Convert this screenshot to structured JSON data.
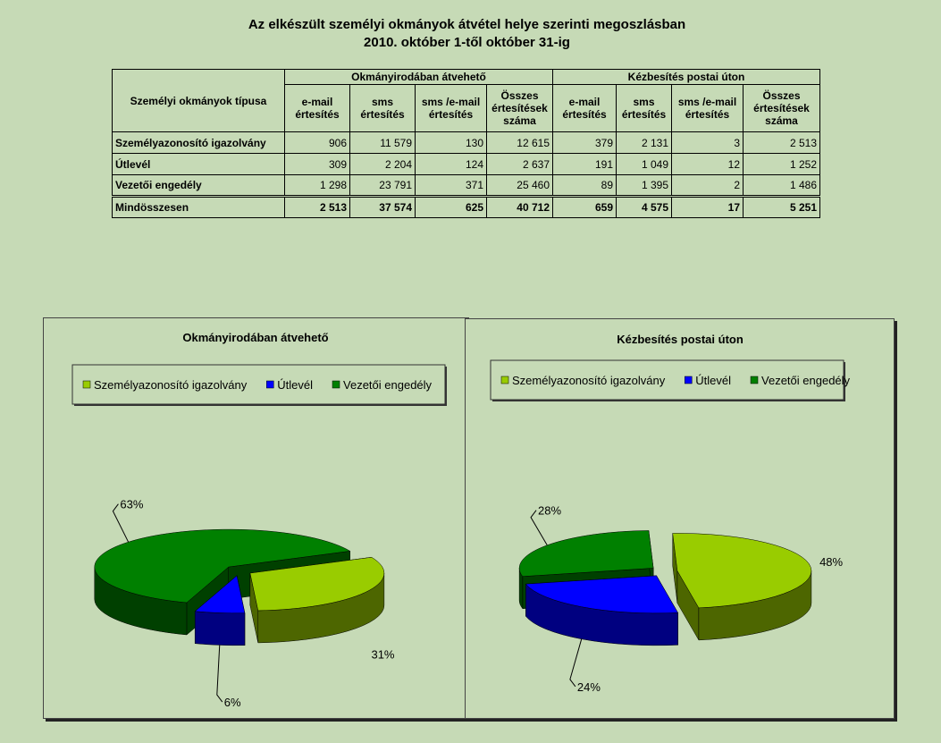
{
  "header": {
    "title": "Az elkészült személyi okmányok átvétel helye szerinti megoszlásban",
    "subtitle": "2010. október 1-től október 31-ig"
  },
  "table": {
    "corner_header": "Személyi okmányok típusa",
    "groups": [
      "Okmányirodában átvehető",
      "Kézbesítés postai úton"
    ],
    "subheaders": [
      "e-mail értesítés",
      "sms értesítés",
      "sms /e-mail értesítés",
      "Összes értesítések száma",
      "e-mail értesítés",
      "sms értesítés",
      "sms /e-mail értesítés",
      "Összes értesítések száma"
    ],
    "rows": [
      [
        "Személyazonosító igazolvány",
        "906",
        "11 579",
        "130",
        "12 615",
        "379",
        "2 131",
        "3",
        "2 513"
      ],
      [
        "Útlevél",
        "309",
        "2 204",
        "124",
        "2 637",
        "191",
        "1 049",
        "12",
        "1 252"
      ],
      [
        "Vezetői engedély",
        "1 298",
        "23 791",
        "371",
        "25 460",
        "89",
        "1 395",
        "2",
        "1 486"
      ],
      [
        "Mindösszesen",
        "2 513",
        "37 574",
        "625",
        "40 712",
        "659",
        "4 575",
        "17",
        "5 251"
      ]
    ]
  },
  "chart_data": [
    {
      "type": "pie",
      "title": "Okmányirodában átvehető",
      "categories": [
        "Személyazonosító igazolvány",
        "Útlevél",
        "Vezetői engedély"
      ],
      "values": [
        31,
        6,
        63
      ],
      "value_labels": [
        "31%",
        "6%",
        "63%"
      ],
      "colors": [
        "#99cc00",
        "#0000ff",
        "#008000"
      ],
      "legend": "top"
    },
    {
      "type": "pie",
      "title": "Kézbesítés postai úton",
      "categories": [
        "Személyazonosító igazolvány",
        "Útlevél",
        "Vezetői engedély"
      ],
      "values": [
        48,
        24,
        28
      ],
      "value_labels": [
        "48%",
        "24%",
        "28%"
      ],
      "colors": [
        "#99cc00",
        "#0000ff",
        "#008000"
      ],
      "legend": "top"
    }
  ]
}
